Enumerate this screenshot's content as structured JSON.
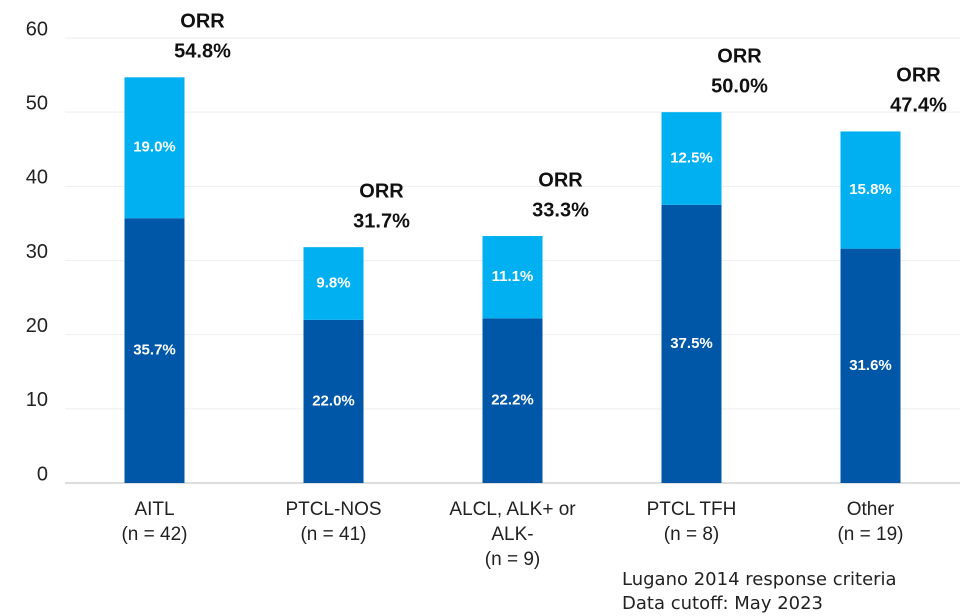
{
  "chart_data": {
    "type": "stacked_bar",
    "categories": [
      [
        "AITL",
        "(n = 42)"
      ],
      [
        "PTCL-NOS",
        "(n = 41)"
      ],
      [
        "ALCL, ALK+ or",
        "ALK-",
        "(n = 9)"
      ],
      [
        "PTCL TFH",
        "(n = 8)"
      ],
      [
        "Other",
        "(n = 19)"
      ]
    ],
    "series": [
      {
        "color": "#0057a8",
        "values": [
          35.7,
          22.0,
          22.2,
          37.5,
          31.6
        ],
        "value_labels": [
          "35.7%",
          "22.0%",
          "22.2%",
          "37.5%",
          "31.6%"
        ]
      },
      {
        "color": "#00b0f0",
        "values": [
          19.0,
          9.8,
          11.1,
          12.5,
          15.8
        ],
        "value_labels": [
          "19.0%",
          "9.8%",
          "11.1%",
          "12.5%",
          "15.8%"
        ]
      }
    ],
    "annotations": [
      [
        "ORR",
        "54.8%"
      ],
      [
        "ORR",
        "31.7%"
      ],
      [
        "ORR",
        "33.3%"
      ],
      [
        "ORR",
        "50.0%"
      ],
      [
        "ORR",
        "47.4%"
      ]
    ],
    "ylim": [
      0,
      60
    ],
    "yticks": [
      0,
      10,
      20,
      30,
      40,
      50,
      60
    ],
    "grid": true,
    "footnotes": [
      "Lugano 2014 response criteria",
      "Data cutoff: May 2023"
    ]
  }
}
